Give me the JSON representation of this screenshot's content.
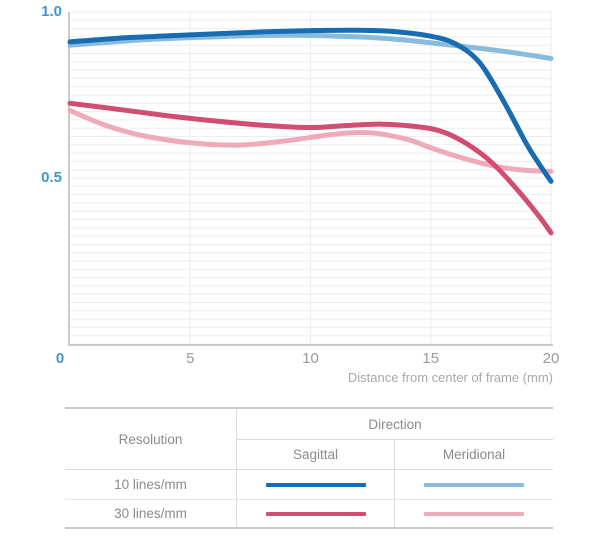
{
  "chart_data": {
    "type": "line",
    "title": "",
    "xlabel": "Distance from center of frame (mm)",
    "ylabel": "",
    "xlim": [
      0,
      20
    ],
    "ylim": [
      0,
      1.0
    ],
    "grid": "minor horizontal lines every 0.025; vertical lines at x ticks; legend in table below chart",
    "xticks": [
      {
        "v": 0,
        "label": "0",
        "accent": true,
        "dx": -10
      },
      {
        "v": 5,
        "label": "5"
      },
      {
        "v": 10,
        "label": "10"
      },
      {
        "v": 15,
        "label": "15"
      },
      {
        "v": 20,
        "label": "20"
      }
    ],
    "yticks": [
      {
        "v": 1.0,
        "label": "1.0",
        "accent": true
      },
      {
        "v": 0.5,
        "label": "0.5",
        "accent": true
      }
    ],
    "colors": {
      "grid": "#ededed",
      "axis": "#c9c9c9",
      "accent_tick": "#4195d1",
      "gray_tick": "#9a9a9a",
      "xlabel_color": "#a8a8a8"
    },
    "series": [
      {
        "name": "10 lines/mm Meridional",
        "color": "#89bbdd",
        "width": 5,
        "points": [
          [
            0,
            0.9
          ],
          [
            3,
            0.916
          ],
          [
            6,
            0.925
          ],
          [
            9,
            0.93
          ],
          [
            12,
            0.925
          ],
          [
            14,
            0.915
          ],
          [
            16,
            0.899
          ],
          [
            18,
            0.882
          ],
          [
            20,
            0.86
          ]
        ]
      },
      {
        "name": "30 lines/mm Meridional",
        "color": "#efaab9",
        "width": 5,
        "points": [
          [
            0,
            0.703
          ],
          [
            1.5,
            0.658
          ],
          [
            3,
            0.628
          ],
          [
            5,
            0.606
          ],
          [
            7,
            0.599
          ],
          [
            9,
            0.612
          ],
          [
            11,
            0.632
          ],
          [
            12.5,
            0.636
          ],
          [
            14,
            0.617
          ],
          [
            15,
            0.591
          ],
          [
            16,
            0.567
          ],
          [
            17,
            0.547
          ],
          [
            18,
            0.531
          ],
          [
            19,
            0.523
          ],
          [
            20,
            0.52
          ]
        ]
      },
      {
        "name": "30 lines/mm Sagittal",
        "color": "#d14d72",
        "width": 5,
        "points": [
          [
            0,
            0.725
          ],
          [
            2,
            0.707
          ],
          [
            4,
            0.688
          ],
          [
            6,
            0.672
          ],
          [
            8,
            0.659
          ],
          [
            10,
            0.652
          ],
          [
            11.5,
            0.658
          ],
          [
            13,
            0.662
          ],
          [
            14.5,
            0.654
          ],
          [
            15.5,
            0.639
          ],
          [
            16.5,
            0.603
          ],
          [
            17.5,
            0.549
          ],
          [
            18.5,
            0.473
          ],
          [
            19.5,
            0.385
          ],
          [
            20,
            0.335
          ]
        ]
      },
      {
        "name": "10 lines/mm Sagittal",
        "color": "#176cb2",
        "width": 5,
        "points": [
          [
            0,
            0.91
          ],
          [
            2,
            0.921
          ],
          [
            4,
            0.928
          ],
          [
            6,
            0.934
          ],
          [
            8,
            0.94
          ],
          [
            10,
            0.944
          ],
          [
            12,
            0.945
          ],
          [
            13.5,
            0.941
          ],
          [
            15,
            0.927
          ],
          [
            16,
            0.905
          ],
          [
            17,
            0.85
          ],
          [
            18,
            0.735
          ],
          [
            19,
            0.6
          ],
          [
            19.5,
            0.543
          ],
          [
            20,
            0.49
          ]
        ]
      }
    ]
  },
  "legend_table": {
    "resolution_header": "Resolution",
    "direction_header": "Direction",
    "sagittal_header": "Sagittal",
    "meridional_header": "Meridional",
    "rows": [
      {
        "label": "10 lines/mm",
        "sagittal_color": "#176cb2",
        "meridional_color": "#89bbdd"
      },
      {
        "label": "30 lines/mm",
        "sagittal_color": "#d14d72",
        "meridional_color": "#efaab9"
      }
    ]
  }
}
